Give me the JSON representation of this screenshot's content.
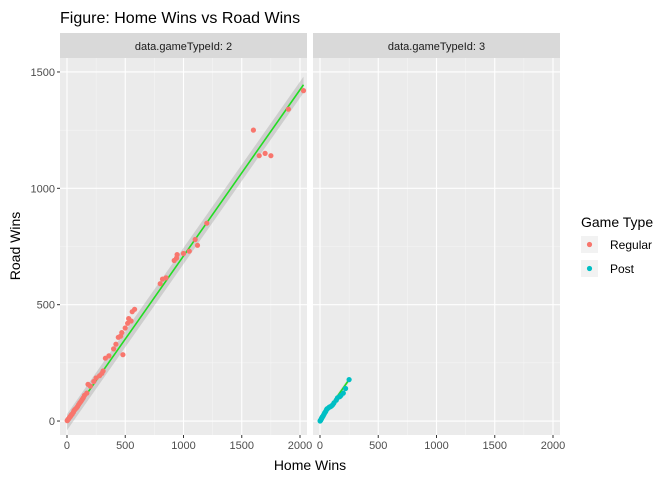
{
  "chart_data": {
    "type": "scatter",
    "title": "Figure: Home Wins vs Road Wins",
    "xlabel": "Home Wins",
    "ylabel": "Road Wins",
    "xlim": [
      -60,
      2060
    ],
    "ylim": [
      -60,
      1560
    ],
    "xticks": [
      0,
      500,
      1000,
      1500,
      2000
    ],
    "yticks": [
      0,
      500,
      1000,
      1500
    ],
    "grid": true,
    "legend": {
      "title": "Game Type",
      "position": "right",
      "entries": [
        {
          "label": "Regular",
          "color": "#f8766d"
        },
        {
          "label": "Post",
          "color": "#00bfc4"
        }
      ]
    },
    "smooth_color": "#22dd22",
    "facets": [
      {
        "label": "data.gameTypeId: 2",
        "series": "Regular",
        "points": [
          [
            2,
            2
          ],
          [
            5,
            4
          ],
          [
            8,
            6
          ],
          [
            12,
            8
          ],
          [
            15,
            10
          ],
          [
            20,
            14
          ],
          [
            25,
            18
          ],
          [
            30,
            20
          ],
          [
            35,
            25
          ],
          [
            40,
            28
          ],
          [
            45,
            30
          ],
          [
            55,
            38
          ],
          [
            60,
            45
          ],
          [
            70,
            50
          ],
          [
            80,
            55
          ],
          [
            90,
            62
          ],
          [
            100,
            70
          ],
          [
            110,
            78
          ],
          [
            120,
            85
          ],
          [
            130,
            92
          ],
          [
            140,
            100
          ],
          [
            150,
            110
          ],
          [
            170,
            120
          ],
          [
            180,
            158
          ],
          [
            200,
            150
          ],
          [
            230,
            170
          ],
          [
            250,
            185
          ],
          [
            280,
            195
          ],
          [
            300,
            205
          ],
          [
            310,
            215
          ],
          [
            330,
            270
          ],
          [
            360,
            280
          ],
          [
            400,
            310
          ],
          [
            420,
            330
          ],
          [
            440,
            360
          ],
          [
            460,
            365
          ],
          [
            470,
            380
          ],
          [
            480,
            285
          ],
          [
            500,
            400
          ],
          [
            520,
            420
          ],
          [
            530,
            440
          ],
          [
            550,
            430
          ],
          [
            560,
            470
          ],
          [
            580,
            480
          ],
          [
            800,
            590
          ],
          [
            820,
            610
          ],
          [
            850,
            615
          ],
          [
            920,
            690
          ],
          [
            940,
            700
          ],
          [
            945,
            715
          ],
          [
            1000,
            720
          ],
          [
            1050,
            730
          ],
          [
            1100,
            780
          ],
          [
            1120,
            755
          ],
          [
            1200,
            850
          ],
          [
            1600,
            1250
          ],
          [
            1650,
            1140
          ],
          [
            1700,
            1150
          ],
          [
            1750,
            1140
          ],
          [
            1900,
            1340
          ],
          [
            2030,
            1420
          ]
        ],
        "smooth": [
          [
            0,
            -5
          ],
          [
            2030,
            1445
          ]
        ]
      },
      {
        "label": "data.gameTypeId: 3",
        "series": "Post",
        "points": [
          [
            1,
            0
          ],
          [
            3,
            2
          ],
          [
            5,
            3
          ],
          [
            8,
            5
          ],
          [
            10,
            8
          ],
          [
            12,
            10
          ],
          [
            15,
            12
          ],
          [
            18,
            15
          ],
          [
            20,
            18
          ],
          [
            25,
            20
          ],
          [
            30,
            25
          ],
          [
            35,
            30
          ],
          [
            40,
            35
          ],
          [
            45,
            38
          ],
          [
            50,
            42
          ],
          [
            55,
            48
          ],
          [
            60,
            52
          ],
          [
            70,
            55
          ],
          [
            80,
            60
          ],
          [
            90,
            62
          ],
          [
            100,
            65
          ],
          [
            110,
            70
          ],
          [
            120,
            78
          ],
          [
            140,
            90
          ],
          [
            150,
            100
          ],
          [
            170,
            105
          ],
          [
            180,
            110
          ],
          [
            200,
            120
          ],
          [
            220,
            140
          ],
          [
            250,
            178
          ]
        ],
        "smooth": [
          [
            0,
            0
          ],
          [
            250,
            178
          ]
        ]
      }
    ]
  }
}
